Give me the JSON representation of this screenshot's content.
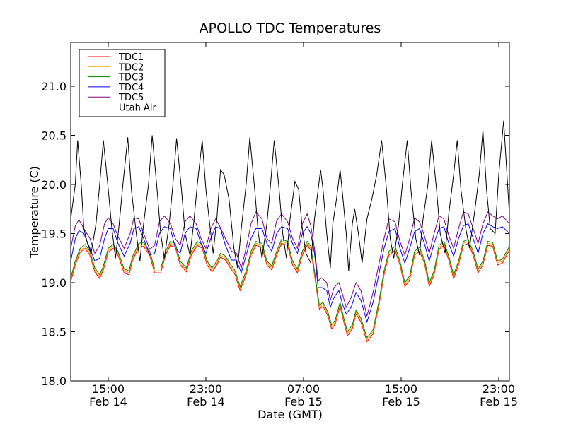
{
  "chart_data": {
    "type": "line",
    "title": "APOLLO TDC Temperatures",
    "xlabel": "Date (GMT)",
    "ylabel": "Temperature (C)",
    "x_unit": "hours since Feb 14 00:00 GMT",
    "xlim": [
      11.93,
      47.87
    ],
    "ylim": [
      18.0,
      21.4
    ],
    "grid": false,
    "legend_position": "top-left",
    "yticks": [
      {
        "value": 18.0,
        "label": "18.0"
      },
      {
        "value": 18.5,
        "label": "18.5"
      },
      {
        "value": 19.0,
        "label": "19.0"
      },
      {
        "value": 19.5,
        "label": "19.5"
      },
      {
        "value": 20.0,
        "label": "20.0"
      },
      {
        "value": 20.5,
        "label": "20.5"
      },
      {
        "value": 21.0,
        "label": "21.0"
      }
    ],
    "xticks": [
      {
        "value": 15,
        "label_time": "15:00",
        "label_date": "Feb 14"
      },
      {
        "value": 23,
        "label_time": "23:00",
        "label_date": "Feb 14"
      },
      {
        "value": 31,
        "label_time": "07:00",
        "label_date": "Feb 15"
      },
      {
        "value": 39,
        "label_time": "15:00",
        "label_date": "Feb 15"
      },
      {
        "value": 47,
        "label_time": "23:00",
        "label_date": "Feb 15"
      }
    ],
    "series": [
      {
        "name": "TDC1",
        "color": "#ff0000",
        "offset": -0.02
      },
      {
        "name": "TDC2",
        "color": "#ffa500",
        "offset": 0.0
      },
      {
        "name": "TDC3",
        "color": "#008000",
        "offset": 0.02
      },
      {
        "name": "TDC4",
        "color": "#0000ff",
        "offset": 0.0
      },
      {
        "name": "TDC5",
        "color": "#800080",
        "offset": 0.0
      },
      {
        "name": "Utah Air",
        "color": "#000000",
        "offset": 0.0
      }
    ],
    "base_tdc": {
      "x": [
        11.93,
        12.3,
        12.7,
        13.1,
        13.5,
        13.9,
        14.3,
        14.6,
        15.0,
        15.4,
        15.8,
        16.3,
        16.7,
        17.0,
        17.5,
        17.9,
        18.4,
        18.8,
        19.3,
        19.7,
        20.1,
        20.5,
        20.9,
        21.4,
        21.8,
        22.3,
        22.7,
        23.1,
        23.5,
        23.9,
        24.2,
        24.6,
        25.0,
        25.4,
        25.8,
        26.3,
        26.7,
        27.1,
        27.6,
        28.0,
        28.4,
        28.8,
        29.2,
        29.7,
        30.1,
        30.5,
        30.9,
        31.3,
        31.6,
        31.9,
        32.3,
        32.6,
        33.0,
        33.3,
        33.6,
        34.0,
        34.3,
        34.6,
        35.0,
        35.3,
        35.7,
        36.2,
        36.7,
        37.2,
        37.6,
        38.0,
        38.5,
        38.9,
        39.3,
        39.7,
        40.1,
        40.5,
        40.9,
        41.3,
        41.7,
        42.1,
        42.5,
        42.9,
        43.3,
        43.7,
        44.1,
        44.5,
        44.9,
        45.3,
        45.7,
        46.1,
        46.5,
        46.9,
        47.3,
        47.87
      ],
      "y": [
        19.03,
        19.2,
        19.33,
        19.37,
        19.3,
        19.13,
        19.06,
        19.15,
        19.33,
        19.37,
        19.3,
        19.12,
        19.1,
        19.25,
        19.38,
        19.39,
        19.3,
        19.12,
        19.12,
        19.3,
        19.4,
        19.38,
        19.2,
        19.13,
        19.3,
        19.4,
        19.37,
        19.2,
        19.13,
        19.2,
        19.28,
        19.25,
        19.17,
        19.1,
        18.94,
        19.1,
        19.3,
        19.4,
        19.38,
        19.2,
        19.15,
        19.3,
        19.42,
        19.4,
        19.2,
        19.12,
        19.3,
        19.4,
        19.35,
        19.1,
        18.75,
        18.78,
        18.68,
        18.55,
        18.6,
        18.78,
        18.62,
        18.48,
        18.55,
        18.7,
        18.62,
        18.42,
        18.5,
        18.8,
        19.1,
        19.3,
        19.35,
        19.2,
        18.98,
        19.05,
        19.3,
        19.34,
        19.22,
        18.98,
        19.1,
        19.36,
        19.4,
        19.25,
        19.06,
        19.2,
        19.4,
        19.42,
        19.3,
        19.12,
        19.2,
        19.4,
        19.39,
        19.2,
        19.22,
        19.35
      ]
    },
    "tdc4": {
      "x": [
        11.93,
        12.3,
        12.6,
        13.0,
        13.5,
        13.9,
        14.3,
        14.7,
        15.0,
        15.4,
        15.8,
        16.3,
        16.8,
        17.1,
        17.5,
        17.9,
        18.4,
        18.8,
        19.2,
        19.6,
        20.1,
        20.5,
        20.9,
        21.3,
        21.7,
        22.2,
        22.6,
        23.0,
        23.4,
        23.8,
        24.2,
        24.6,
        25.1,
        25.5,
        25.9,
        26.3,
        26.7,
        27.1,
        27.6,
        28.0,
        28.4,
        28.8,
        29.2,
        29.7,
        30.1,
        30.5,
        30.9,
        31.3,
        31.6,
        31.9,
        32.2,
        32.5,
        32.9,
        33.2,
        33.5,
        33.9,
        34.2,
        34.5,
        34.9,
        35.3,
        35.7,
        36.2,
        36.7,
        37.2,
        37.6,
        38.0,
        38.5,
        38.9,
        39.3,
        39.7,
        40.1,
        40.5,
        40.9,
        41.3,
        41.7,
        42.1,
        42.5,
        42.9,
        43.3,
        43.7,
        44.1,
        44.5,
        44.9,
        45.3,
        45.7,
        46.1,
        46.5,
        46.9,
        47.3,
        47.87
      ],
      "y": [
        19.22,
        19.45,
        19.53,
        19.5,
        19.35,
        19.22,
        19.25,
        19.45,
        19.55,
        19.55,
        19.4,
        19.27,
        19.4,
        19.55,
        19.57,
        19.45,
        19.28,
        19.3,
        19.5,
        19.57,
        19.55,
        19.35,
        19.3,
        19.5,
        19.57,
        19.55,
        19.4,
        19.3,
        19.45,
        19.57,
        19.55,
        19.38,
        19.23,
        19.23,
        19.1,
        19.28,
        19.45,
        19.55,
        19.55,
        19.4,
        19.32,
        19.5,
        19.57,
        19.55,
        19.4,
        19.3,
        19.5,
        19.57,
        19.5,
        19.3,
        18.95,
        18.95,
        18.92,
        18.75,
        18.85,
        18.92,
        18.78,
        18.68,
        18.75,
        18.9,
        18.82,
        18.6,
        18.8,
        19.1,
        19.35,
        19.52,
        19.55,
        19.35,
        19.2,
        19.35,
        19.52,
        19.55,
        19.4,
        19.22,
        19.4,
        19.55,
        19.57,
        19.4,
        19.27,
        19.45,
        19.58,
        19.6,
        19.45,
        19.3,
        19.5,
        19.6,
        19.57,
        19.55,
        19.57,
        19.5
      ]
    },
    "tdc5": {
      "x": [
        11.93,
        12.3,
        12.6,
        13.0,
        13.5,
        13.9,
        14.3,
        14.7,
        15.0,
        15.4,
        15.8,
        16.3,
        16.8,
        17.1,
        17.5,
        17.9,
        18.4,
        18.8,
        19.2,
        19.6,
        20.1,
        20.5,
        20.9,
        21.3,
        21.7,
        22.2,
        22.6,
        23.0,
        23.4,
        23.8,
        24.2,
        24.6,
        25.1,
        25.5,
        25.9,
        26.3,
        26.7,
        27.1,
        27.6,
        28.0,
        28.4,
        28.8,
        29.2,
        29.7,
        30.1,
        30.5,
        30.9,
        31.3,
        31.6,
        31.9,
        32.2,
        32.5,
        32.9,
        33.2,
        33.5,
        33.9,
        34.2,
        34.5,
        34.9,
        35.3,
        35.7,
        36.2,
        36.7,
        37.2,
        37.6,
        38.0,
        38.5,
        38.9,
        39.3,
        39.7,
        40.1,
        40.5,
        40.9,
        41.3,
        41.7,
        42.1,
        42.5,
        42.9,
        43.3,
        43.7,
        44.1,
        44.5,
        44.9,
        45.3,
        45.7,
        46.1,
        46.5,
        46.9,
        47.3,
        47.87
      ],
      "y": [
        19.35,
        19.58,
        19.64,
        19.55,
        19.45,
        19.3,
        19.38,
        19.6,
        19.66,
        19.6,
        19.47,
        19.35,
        19.5,
        19.66,
        19.65,
        19.5,
        19.34,
        19.38,
        19.62,
        19.68,
        19.6,
        19.45,
        19.38,
        19.62,
        19.68,
        19.6,
        19.45,
        19.35,
        19.55,
        19.65,
        19.56,
        19.45,
        19.32,
        19.3,
        19.15,
        19.35,
        19.6,
        19.72,
        19.65,
        19.45,
        19.4,
        19.63,
        19.7,
        19.62,
        19.45,
        19.35,
        19.6,
        19.7,
        19.58,
        19.35,
        19.02,
        19.05,
        19.0,
        18.82,
        18.95,
        19.0,
        18.88,
        18.75,
        18.85,
        19.0,
        18.92,
        18.66,
        18.9,
        19.2,
        19.45,
        19.65,
        19.62,
        19.42,
        19.28,
        19.45,
        19.66,
        19.62,
        19.48,
        19.3,
        19.5,
        19.68,
        19.65,
        19.48,
        19.35,
        19.55,
        19.72,
        19.7,
        19.55,
        19.4,
        19.6,
        19.72,
        19.68,
        19.65,
        19.68,
        19.6
      ]
    },
    "utah_air": {
      "x": [
        11.93,
        12.3,
        12.5,
        12.8,
        13.0,
        13.3,
        13.6,
        14.0,
        14.3,
        14.6,
        15.0,
        15.3,
        15.6,
        15.9,
        16.2,
        16.6,
        16.9,
        17.3,
        17.6,
        17.9,
        18.3,
        18.6,
        19.0,
        19.3,
        19.6,
        20.0,
        20.3,
        20.6,
        21.0,
        21.3,
        21.7,
        22.0,
        22.3,
        22.7,
        23.0,
        23.4,
        23.6,
        23.9,
        24.2,
        24.5,
        24.9,
        25.3,
        25.6,
        25.9,
        26.3,
        26.6,
        27.0,
        27.3,
        27.6,
        28.0,
        28.3,
        28.6,
        29.0,
        29.3,
        29.6,
        29.9,
        30.3,
        30.6,
        30.9,
        31.2,
        31.6,
        31.9,
        32.1,
        32.4,
        32.6,
        32.9,
        33.2,
        33.4,
        33.7,
        34.0,
        34.2,
        34.5,
        34.7,
        35.0,
        35.2,
        35.5,
        35.8,
        36.2,
        36.6,
        37.0,
        37.4,
        37.8,
        38.1,
        38.4,
        38.8,
        39.1,
        39.5,
        39.8,
        40.2,
        40.5,
        40.8,
        41.2,
        41.5,
        41.9,
        42.2,
        42.6,
        42.9,
        43.3,
        43.6,
        43.9,
        44.3,
        44.6,
        45.0,
        45.4,
        45.7,
        46.0,
        46.3,
        46.7,
        47.0,
        47.4,
        47.87
      ],
      "y": [
        19.65,
        20.0,
        20.45,
        19.98,
        19.55,
        19.4,
        19.3,
        19.6,
        20.0,
        20.45,
        19.95,
        19.55,
        19.25,
        19.6,
        20.0,
        20.48,
        19.95,
        19.5,
        19.22,
        19.6,
        20.0,
        20.5,
        19.95,
        19.5,
        19.25,
        19.6,
        20.0,
        20.47,
        19.95,
        19.5,
        19.28,
        19.6,
        20.0,
        20.45,
        19.95,
        19.5,
        19.3,
        19.65,
        20.15,
        20.1,
        19.85,
        19.35,
        19.15,
        19.55,
        20.0,
        20.48,
        19.95,
        19.5,
        19.25,
        19.6,
        20.0,
        20.45,
        19.95,
        19.5,
        19.25,
        19.65,
        20.03,
        19.95,
        19.55,
        19.3,
        19.2,
        19.65,
        19.85,
        20.15,
        19.95,
        19.5,
        19.15,
        19.6,
        19.85,
        20.15,
        19.9,
        19.5,
        19.12,
        19.6,
        19.75,
        19.5,
        19.2,
        19.65,
        19.85,
        20.1,
        20.45,
        19.95,
        19.45,
        19.25,
        19.6,
        20.0,
        20.45,
        19.95,
        19.45,
        19.28,
        19.65,
        20.0,
        20.45,
        19.95,
        19.5,
        19.3,
        19.7,
        20.1,
        20.45,
        19.95,
        19.55,
        19.35,
        19.7,
        20.1,
        20.55,
        19.95,
        19.55,
        19.5,
        20.1,
        20.65,
        19.7
      ]
    }
  }
}
